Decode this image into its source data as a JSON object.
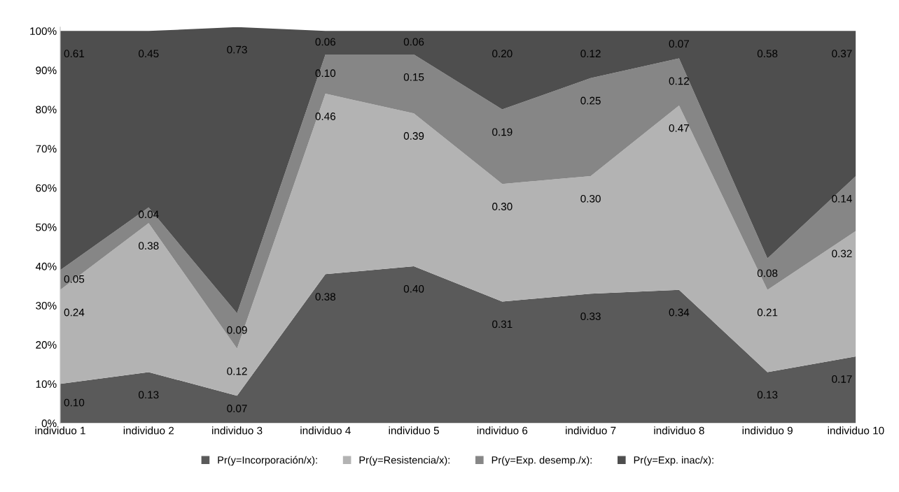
{
  "chart_data": {
    "type": "area",
    "stacked": true,
    "legend": "bottom",
    "grid": false,
    "categories": [
      "individuo 1",
      "individuo 2",
      "individuo 3",
      "individuo 4",
      "individuo 5",
      "individuo 6",
      "individuo 7",
      "individuo 8",
      "individuo 9",
      "individuo 10"
    ],
    "ylim": [
      0,
      1.01
    ],
    "yticks": [
      {
        "value": 0,
        "label": "0%"
      },
      {
        "value": 0.1,
        "label": "10%"
      },
      {
        "value": 0.2,
        "label": "20%"
      },
      {
        "value": 0.3,
        "label": "30%"
      },
      {
        "value": 0.4,
        "label": "40%"
      },
      {
        "value": 0.5,
        "label": "50%"
      },
      {
        "value": 0.6,
        "label": "60%"
      },
      {
        "value": 0.7,
        "label": "70%"
      },
      {
        "value": 0.8,
        "label": "80%"
      },
      {
        "value": 0.9,
        "label": "90%"
      },
      {
        "value": 1,
        "label": "100%"
      }
    ],
    "series": [
      {
        "name": "Pr(y=Incorporación/x):",
        "color": "#5a5a5a",
        "values": [
          0.1,
          0.13,
          0.07,
          0.38,
          0.4,
          0.31,
          0.33,
          0.34,
          0.13,
          0.17
        ],
        "value_labels": [
          "0.10",
          "0.13",
          "0.07",
          "0.38",
          "0.40",
          "0.31",
          "0.33",
          "0.34",
          "0.13",
          "0.17"
        ]
      },
      {
        "name": "Pr(y=Resistencia/x):",
        "color": "#b3b3b3",
        "values": [
          0.24,
          0.38,
          0.12,
          0.46,
          0.39,
          0.3,
          0.3,
          0.47,
          0.21,
          0.32
        ],
        "value_labels": [
          "0.24",
          "0.38",
          "0.12",
          "0.46",
          "0.39",
          "0.30",
          "0.30",
          "0.47",
          "0.21",
          "0.32"
        ]
      },
      {
        "name": "Pr(y=Exp. desemp./x):",
        "color": "#868686",
        "values": [
          0.05,
          0.04,
          0.09,
          0.1,
          0.15,
          0.19,
          0.25,
          0.12,
          0.08,
          0.14
        ],
        "value_labels": [
          "0.05",
          "0.04",
          "0.09",
          "0.10",
          "0.15",
          "0.19",
          "0.25",
          "0.12",
          "0.08",
          "0.14"
        ]
      },
      {
        "name": "Pr(y=Exp. inac/x):",
        "color": "#4e4e4e",
        "values": [
          0.61,
          0.45,
          0.73,
          0.06,
          0.06,
          0.2,
          0.12,
          0.07,
          0.58,
          0.37
        ],
        "value_labels": [
          "0.61",
          "0.45",
          "0.73",
          "0.06",
          "0.06",
          "0.20",
          "0.12",
          "0.07",
          "0.58",
          "0.37"
        ]
      }
    ]
  }
}
